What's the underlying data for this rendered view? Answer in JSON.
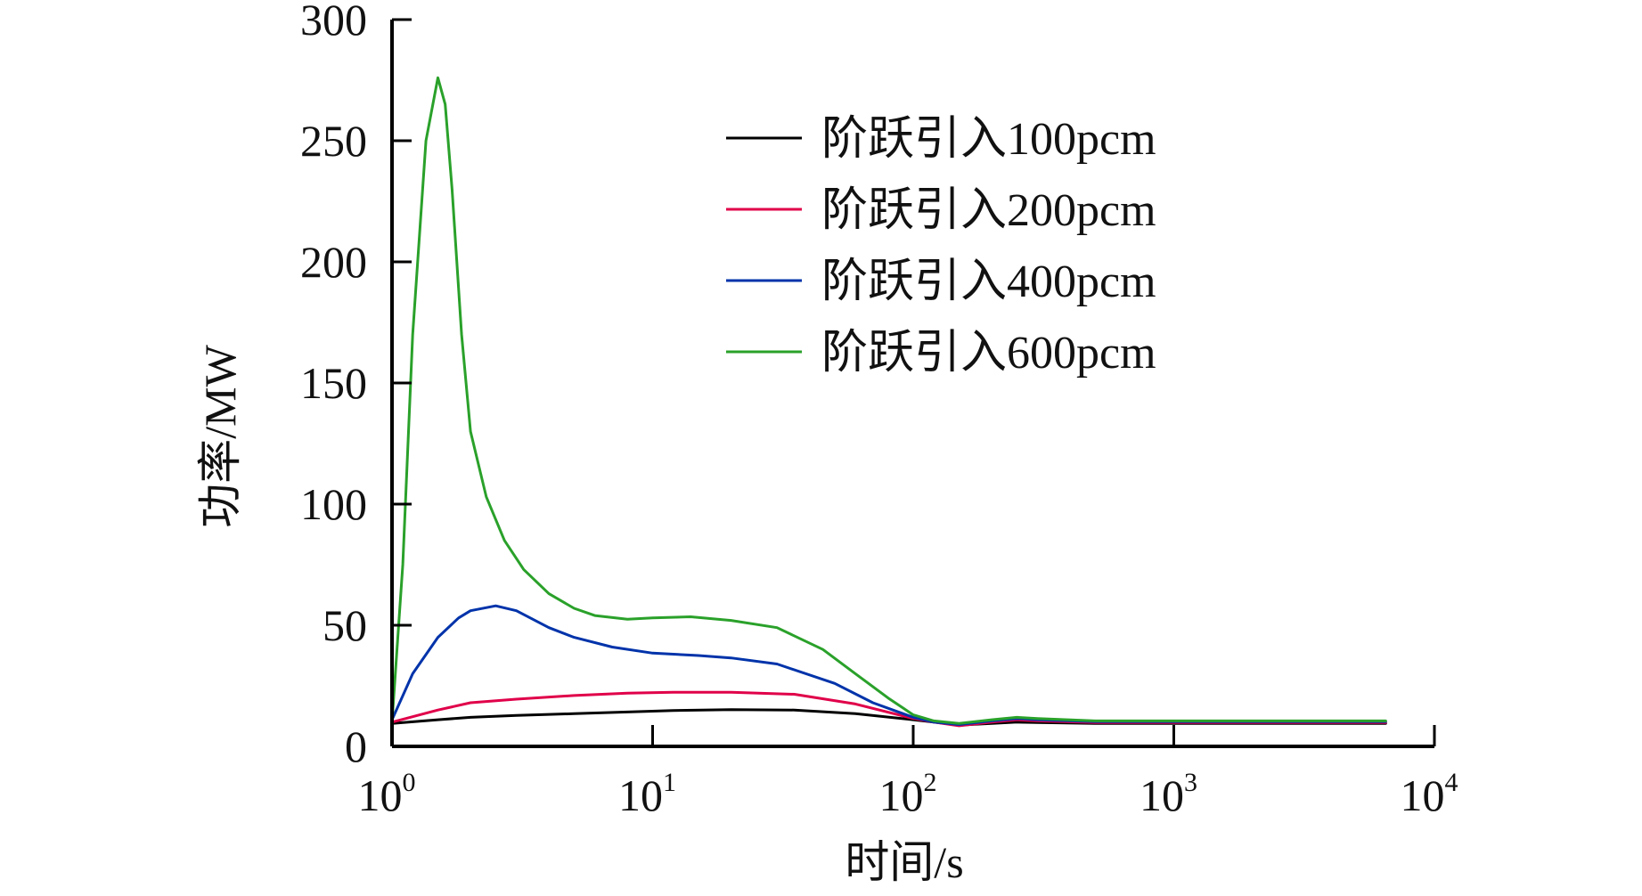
{
  "chart_data": {
    "type": "line",
    "xlabel": "时间/s",
    "ylabel": "功率/MW",
    "x_scale": "log",
    "xlim": [
      1,
      10000
    ],
    "ylim": [
      0,
      300
    ],
    "y_ticks": [
      "0",
      "50",
      "100",
      "150",
      "200",
      "250",
      "300"
    ],
    "x_ticks": [
      {
        "base": "10",
        "exp": "0"
      },
      {
        "base": "10",
        "exp": "1"
      },
      {
        "base": "10",
        "exp": "2"
      },
      {
        "base": "10",
        "exp": "3"
      },
      {
        "base": "10",
        "exp": "4"
      }
    ],
    "grid": false,
    "legend_position": "top-right",
    "series": [
      {
        "name": "阶跃引入100pcm",
        "color": "#000000",
        "x": [
          1,
          1.5,
          2,
          3,
          5,
          8,
          12,
          20,
          35,
          60,
          100,
          120,
          150,
          200,
          250,
          300,
          500,
          1000,
          3000,
          6500
        ],
        "y": [
          9.5,
          11,
          12,
          12.8,
          13.5,
          14.2,
          14.8,
          15.2,
          15,
          13.5,
          11,
          10,
          8.8,
          9.5,
          10,
          9.8,
          9.5,
          9.5,
          9.5,
          9.5
        ]
      },
      {
        "name": "阶跃引入200pcm",
        "color": "#e0004a",
        "x": [
          1,
          1.5,
          2,
          3,
          5,
          8,
          12,
          20,
          35,
          60,
          100,
          120,
          150,
          200,
          250,
          300,
          500,
          1000,
          3000,
          6500
        ],
        "y": [
          10,
          15,
          18,
          19.5,
          21,
          22,
          22.3,
          22.3,
          21.5,
          17.5,
          11.5,
          10,
          8.5,
          10,
          11,
          10.5,
          9.8,
          9.8,
          9.8,
          9.8
        ]
      },
      {
        "name": "阶跃引入400pcm",
        "color": "#0033aa",
        "x": [
          1,
          1.2,
          1.5,
          1.8,
          2,
          2.5,
          3,
          4,
          5,
          7,
          10,
          15,
          20,
          30,
          50,
          70,
          100,
          120,
          150,
          200,
          250,
          300,
          500,
          1000,
          3000,
          6500
        ],
        "y": [
          11,
          30,
          45,
          53,
          56,
          58,
          56,
          49,
          45,
          41,
          38.5,
          37.5,
          36.5,
          34,
          26,
          18,
          12,
          10,
          9,
          10.5,
          11.5,
          11,
          10.2,
          10.2,
          10.2,
          10.2
        ]
      },
      {
        "name": "阶跃引入600pcm",
        "color": "#2aa12a",
        "x": [
          1,
          1.1,
          1.2,
          1.35,
          1.5,
          1.6,
          1.7,
          1.85,
          2,
          2.3,
          2.7,
          3.2,
          4,
          5,
          6,
          8,
          10,
          14,
          20,
          30,
          45,
          60,
          80,
          100,
          120,
          150,
          200,
          250,
          300,
          500,
          1000,
          3000,
          6500
        ],
        "y": [
          10,
          75,
          170,
          250,
          276,
          265,
          230,
          170,
          130,
          103,
          85,
          73,
          63,
          57,
          54,
          52.5,
          53,
          53.5,
          52,
          49,
          40,
          30,
          20,
          13,
          10.5,
          9.5,
          11,
          12,
          11.5,
          10.5,
          10.5,
          10.5,
          10.5
        ]
      }
    ]
  }
}
